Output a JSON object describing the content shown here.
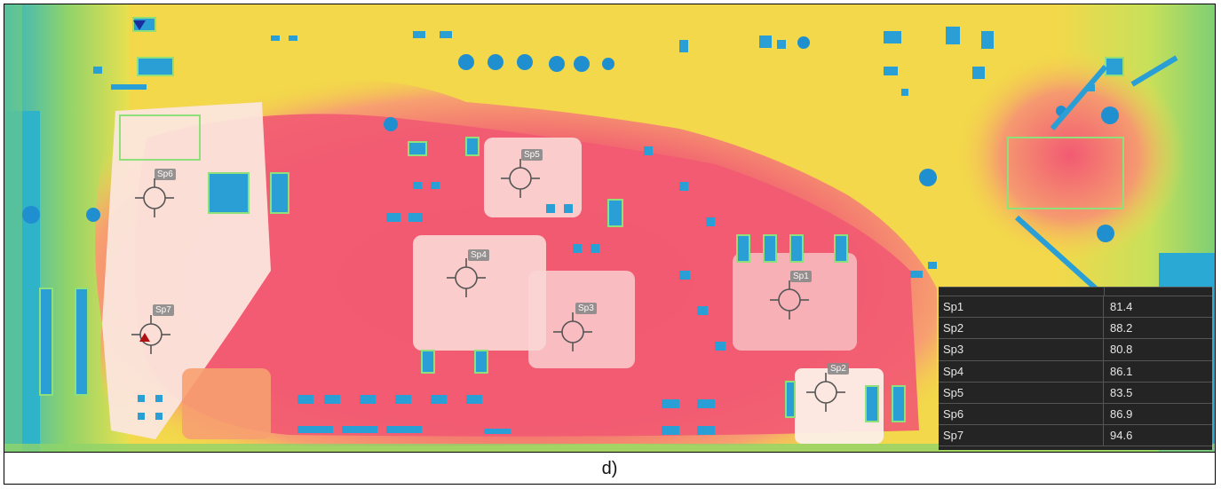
{
  "caption": "d)",
  "marker_icon": "triangle-down-icon",
  "spots": [
    {
      "id": "Sp1",
      "label": "Sp1",
      "value": "81.4"
    },
    {
      "id": "Sp2",
      "label": "Sp2",
      "value": "88.2"
    },
    {
      "id": "Sp3",
      "label": "Sp3",
      "value": "80.8"
    },
    {
      "id": "Sp4",
      "label": "Sp4",
      "value": "86.1"
    },
    {
      "id": "Sp5",
      "label": "Sp5",
      "value": "83.5"
    },
    {
      "id": "Sp6",
      "label": "Sp6",
      "value": "86.9"
    },
    {
      "id": "Sp7",
      "label": "Sp7",
      "value": "94.6"
    }
  ],
  "colors": {
    "hot": "#f25a72",
    "warm": "#f7a07a",
    "hottest": "#fbe9de",
    "mid": "#f5d84a",
    "cool": "#8fd36a",
    "cold": "#29a8d8",
    "panel": "#242424"
  }
}
